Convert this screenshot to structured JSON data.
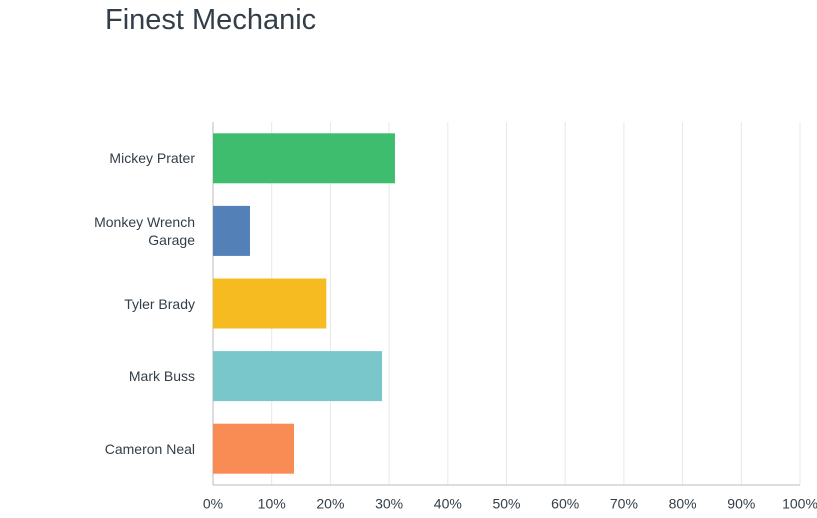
{
  "chart_data": {
    "type": "bar",
    "orientation": "horizontal",
    "title": "Finest Mechanic",
    "categories": [
      "Mickey Prater",
      "Monkey Wrench Garage",
      "Tyler Brady",
      "Mark Buss",
      "Cameron Neal"
    ],
    "values": [
      31,
      6.3,
      19.3,
      28.8,
      13.8
    ],
    "colors": [
      "#3ebd6f",
      "#5480b8",
      "#f5bb20",
      "#79c7cb",
      "#f98b55"
    ],
    "xlim": [
      0,
      100
    ],
    "xticks": [
      {
        "value": 0,
        "label": "0%"
      },
      {
        "value": 10,
        "label": "10%"
      },
      {
        "value": 20,
        "label": "20%"
      },
      {
        "value": 30,
        "label": "30%"
      },
      {
        "value": 40,
        "label": "40%"
      },
      {
        "value": 50,
        "label": "50%"
      },
      {
        "value": 60,
        "label": "60%"
      },
      {
        "value": 70,
        "label": "70%"
      },
      {
        "value": 80,
        "label": "80%"
      },
      {
        "value": 90,
        "label": "90%"
      },
      {
        "value": 100,
        "label": "100%"
      }
    ],
    "grid": true
  }
}
